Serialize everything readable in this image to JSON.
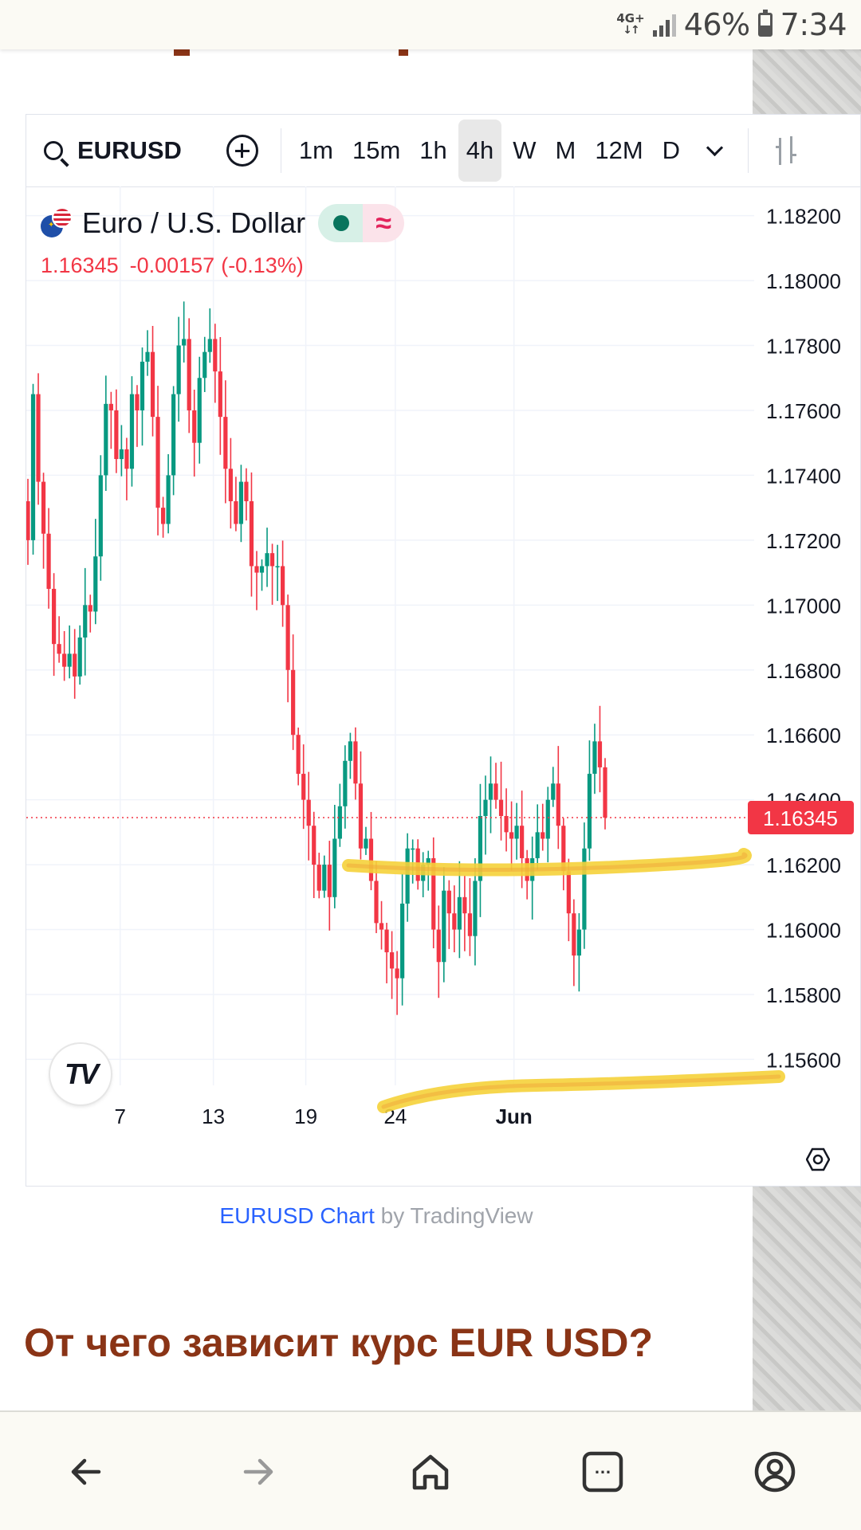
{
  "status_bar": {
    "network": "4G+",
    "battery_percent": "46%",
    "battery_level": 0.46,
    "time": "7:34"
  },
  "toolbar": {
    "symbol": "EURUSD",
    "intervals": [
      {
        "label": "1m",
        "active": false
      },
      {
        "label": "15m",
        "active": false
      },
      {
        "label": "1h",
        "active": false
      },
      {
        "label": "4h",
        "active": true
      },
      {
        "label": "W",
        "active": false
      },
      {
        "label": "M",
        "active": false
      },
      {
        "label": "12M",
        "active": false
      },
      {
        "label": "D",
        "active": false
      }
    ]
  },
  "legend": {
    "title": "Euro / U.S. Dollar",
    "delayed_symbol": "≈",
    "last": "1.16345",
    "change": "-0.00157",
    "change_pct": "(-0.13%)"
  },
  "chart_data": {
    "type": "candlestick",
    "symbol": "EURUSD",
    "interval": "4h",
    "ylim": [
      1.1552,
      1.1829
    ],
    "y_ticks": [
      "1.18200",
      "1.18000",
      "1.17800",
      "1.17600",
      "1.17400",
      "1.17200",
      "1.17000",
      "1.16800",
      "1.16600",
      "1.16400",
      "1.16200",
      "1.16000",
      "1.15800",
      "1.15600"
    ],
    "x_ticks": [
      "7",
      "13",
      "19",
      "24",
      "Jun"
    ],
    "last_price_label": "1.16345",
    "up_color": "#089981",
    "down_color": "#f23645",
    "closes": [
      1.172,
      1.1765,
      1.1738,
      1.1722,
      1.1705,
      1.1688,
      1.1685,
      1.1681,
      1.1685,
      1.1678,
      1.169,
      1.17,
      1.1698,
      1.1715,
      1.174,
      1.1762,
      1.176,
      1.1745,
      1.1748,
      1.1742,
      1.1765,
      1.176,
      1.1775,
      1.1778,
      1.1758,
      1.173,
      1.1725,
      1.174,
      1.1765,
      1.178,
      1.1782,
      1.176,
      1.175,
      1.177,
      1.1778,
      1.1782,
      1.1772,
      1.1758,
      1.1742,
      1.1732,
      1.1725,
      1.1738,
      1.1732,
      1.1712,
      1.171,
      1.1712,
      1.1716,
      1.1712,
      1.1712,
      1.17,
      1.168,
      1.166,
      1.1648,
      1.164,
      1.1632,
      1.162,
      1.1612,
      1.162,
      1.161,
      1.1628,
      1.1638,
      1.1652,
      1.1658,
      1.1645,
      1.1625,
      1.1628,
      1.1615,
      1.1602,
      1.16,
      1.1593,
      1.1588,
      1.1585,
      1.1608,
      1.1625,
      1.1625,
      1.1615,
      1.162,
      1.1622,
      1.16,
      1.159,
      1.1612,
      1.1605,
      1.16,
      1.161,
      1.1605,
      1.1598,
      1.1615,
      1.1635,
      1.164,
      1.1645,
      1.164,
      1.1635,
      1.163,
      1.1628,
      1.1632,
      1.1622,
      1.1615,
      1.1622,
      1.163,
      1.1628,
      1.164,
      1.1645,
      1.1632,
      1.1618,
      1.1605,
      1.1592,
      1.16,
      1.1625,
      1.1648,
      1.1658,
      1.165,
      1.16345
    ]
  },
  "widget_attribution": {
    "link_text": "EURUSD Chart",
    "by_text": " by TradingView"
  },
  "article": {
    "heading": "От чего зависит курс EUR USD?"
  },
  "bottom_nav": {
    "tabs_count": "…"
  }
}
